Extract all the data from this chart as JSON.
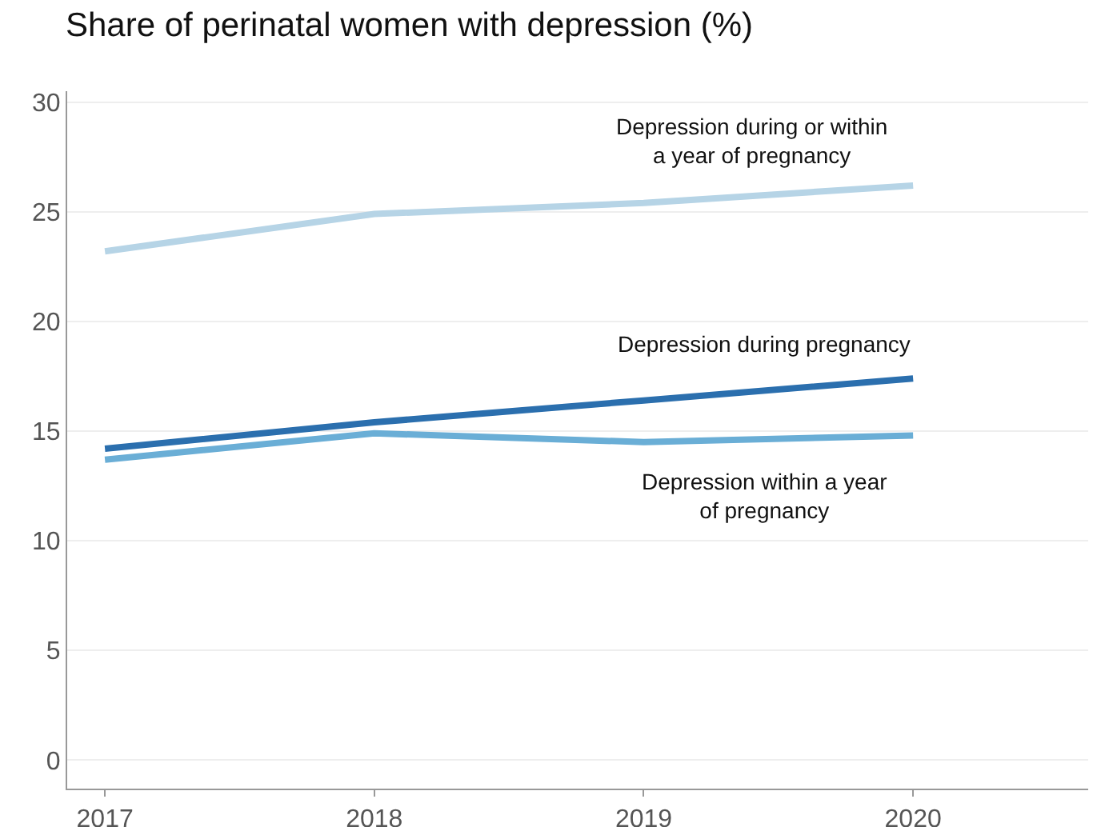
{
  "chart_data": {
    "type": "line",
    "title": "Share of perinatal women with depression (%)",
    "x": [
      2017,
      2018,
      2019,
      2020
    ],
    "xlim": [
      2016.86,
      2020.65
    ],
    "xticks": [
      2017,
      2018,
      2019,
      2020
    ],
    "ylim": [
      -1.3,
      30.5
    ],
    "yticks": [
      0,
      5,
      10,
      15,
      20,
      25,
      30
    ],
    "grid": "y",
    "legend": false,
    "marker": "none",
    "line_style": "solid",
    "series": [
      {
        "name": "Depression during or within\na year of pregnancy",
        "color": "#b6d4e6",
        "values": [
          23.2,
          24.9,
          25.4,
          26.2
        ]
      },
      {
        "name": "Depression during pregnancy",
        "color": "#2b6fae",
        "values": [
          14.2,
          15.4,
          16.4,
          17.4
        ]
      },
      {
        "name": "Depression within a year\nof pregnancy",
        "color": "#6aaed6",
        "values": [
          13.7,
          14.9,
          14.5,
          14.8
        ]
      }
    ]
  }
}
